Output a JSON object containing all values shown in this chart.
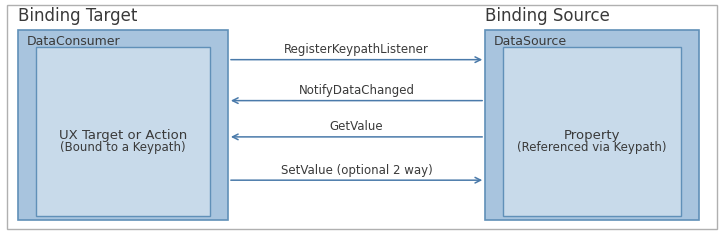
{
  "background_color": "#ffffff",
  "outer_border_color": "#b0b0b0",
  "box_fill_outer": "#a8c4de",
  "box_fill_inner": "#c8daea",
  "box_edge_color": "#6090b8",
  "title_left": "Binding Target",
  "title_right": "Binding Source",
  "label_dc": "DataConsumer",
  "label_ds": "DataSource",
  "label_ux": "UX Target or Action",
  "label_ux_sub": "(Bound to a Keypath)",
  "label_prop": "Property",
  "label_prop_sub": "(Referenced via Keypath)",
  "arrow1_label": "RegisterKeypathListener",
  "arrow2_label": "NotifyDataChanged",
  "arrow3_label": "GetValue",
  "arrow4_label": "SetValue (optional 2 way)",
  "text_color": "#3a3a3a",
  "arrow_color": "#4a7aaa",
  "figsize": [
    7.24,
    2.34
  ],
  "dpi": 100
}
